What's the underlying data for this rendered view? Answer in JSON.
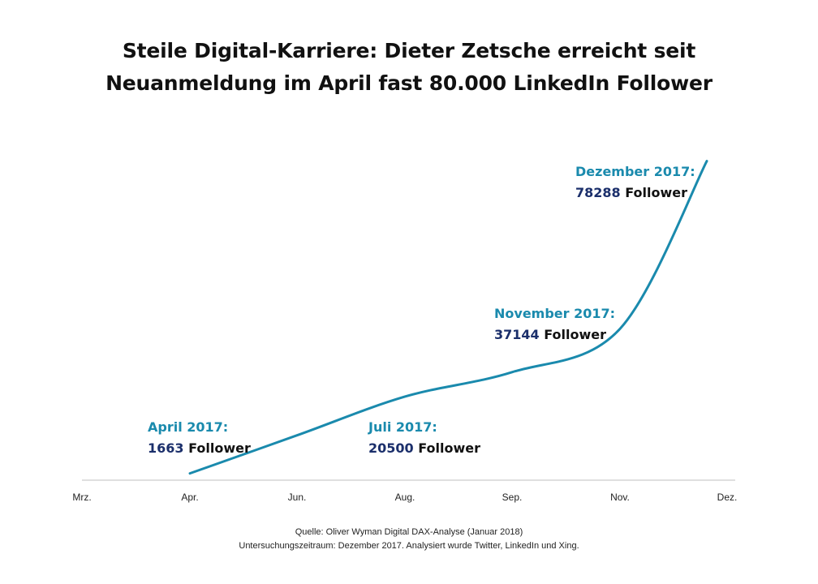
{
  "title_line1": "Steile Digital-Karriere: Dieter Zetsche erreicht seit",
  "title_line2": "Neuanmeldung im April fast 80.000 LinkedIn Follower",
  "colors": {
    "line": "#1a8aad",
    "date_label": "#1a8aad",
    "value_label": "#1b2f6b",
    "axis": "#bfbfbf"
  },
  "chart_data": {
    "type": "line",
    "title": "Steile Digital-Karriere: Dieter Zetsche erreicht seit Neuanmeldung im April fast 80.000 LinkedIn Follower",
    "xlabel": "",
    "ylabel": "",
    "grid": false,
    "x_ticks": [
      "Mrz.",
      "Apr.",
      "Jun.",
      "Aug.",
      "Sep.",
      "Nov.",
      "Dez."
    ],
    "ylim": [
      0,
      80000
    ],
    "series": [
      {
        "x": [
          "Apr.",
          "Jun.",
          "Aug.",
          "Sep.",
          "Nov.",
          "Dez."
        ],
        "values": [
          1663,
          11000,
          20500,
          26500,
          37144,
          78288
        ]
      }
    ],
    "annotations": [
      {
        "x": "Apr.",
        "date": "April 2017:",
        "value": "1663",
        "unit": "Follower"
      },
      {
        "x": "Aug.",
        "date": "Juli 2017:",
        "value": "20500",
        "unit": "Follower"
      },
      {
        "x": "Nov.",
        "date": "November 2017:",
        "value": "37144",
        "unit": "Follower"
      },
      {
        "x": "Dez.",
        "date": "Dezember 2017:",
        "value": "78288",
        "unit": "Follower"
      }
    ]
  },
  "source_line1": "Quelle: Oliver Wyman Digital DAX-Analyse (Januar 2018)",
  "source_line2": "Untersuchungszeitraum: Dezember  2017. Analysiert wurde Twitter, LinkedIn und Xing."
}
